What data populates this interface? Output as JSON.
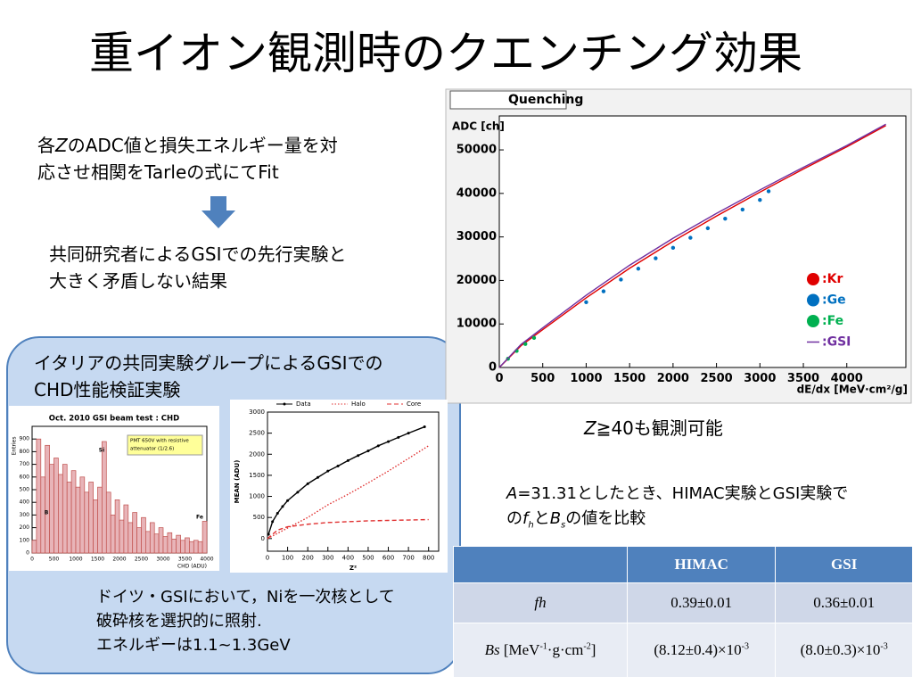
{
  "title": "重イオン観測時のクエンチング効果",
  "intro": {
    "line1": [
      "各",
      "Z",
      "のADC値と損失エネルギー量を対"
    ],
    "line2": "応させ相関をTarleの式にてFit"
  },
  "result": [
    "共同研究者によるGSIでの先行実験と",
    "大きく矛盾しない結果"
  ],
  "box": {
    "heading": [
      "イタリアの共同実験グループによるGSIでの",
      "CHD性能検証実験"
    ],
    "notes": [
      "ドイツ・GSIにおいて，Niを一次核として",
      "破砕核を選択的に照射.",
      "エネルギーは1.1~1.3GeV"
    ]
  },
  "z_note": [
    "Z",
    "≧40も観測可能"
  ],
  "compare": {
    "line1": [
      "A",
      "=31.31としたとき、HIMAC実験とGSI実験で"
    ],
    "line2": [
      "の",
      "f",
      "h",
      "と",
      "B",
      "s",
      "の値を比較"
    ]
  },
  "table": {
    "header": [
      "HIMAC",
      "GSI"
    ],
    "rows": [
      {
        "label": [
          "fh"
        ],
        "values": [
          [
            "0.39±0.01"
          ],
          [
            "0.36±0.01"
          ]
        ]
      },
      {
        "label": [
          "Bs",
          " [MeV",
          "-1",
          "·g·cm",
          "-2",
          "]"
        ],
        "values": [
          [
            "(8.12±0.4)×10",
            "-3"
          ],
          [
            "(8.0±0.3)×10",
            "-3"
          ]
        ]
      }
    ]
  },
  "chart_data": [
    {
      "type": "line",
      "title": "Quenching",
      "y_label": "ADC [ch]",
      "x_label": "dE/dx [MeV·cm²/g]",
      "xlim": [
        0,
        4680
      ],
      "ylim": [
        0,
        57800
      ],
      "xticks": [
        0,
        500,
        1000,
        1500,
        2000,
        2500,
        3000,
        3500,
        4000
      ],
      "yticks": [
        0,
        10000,
        20000,
        30000,
        40000,
        50000
      ],
      "series": [
        {
          "name": ":Kr",
          "color": "#e00000",
          "mode": "line",
          "legend_marker": "dot",
          "x": [
            0,
            250,
            500,
            1000,
            1500,
            2000,
            2500,
            3000,
            3500,
            4000,
            4450
          ],
          "values": [
            0,
            5000,
            8700,
            16000,
            22800,
            29000,
            34800,
            40300,
            45600,
            50700,
            55600
          ]
        },
        {
          "name": ":Ge",
          "color": "#0070c0",
          "mode": "points",
          "legend_marker": "dot",
          "x": [
            1000,
            1200,
            1400,
            1600,
            1800,
            2000,
            2200,
            2400,
            2600,
            2800,
            3000,
            3100
          ],
          "values": [
            15000,
            17500,
            20200,
            22700,
            25100,
            27500,
            29800,
            32000,
            34200,
            36300,
            38500,
            40500
          ]
        },
        {
          "name": ":Fe",
          "color": "#00b050",
          "mode": "points",
          "legend_marker": "dot",
          "x": [
            100,
            200,
            300,
            400
          ],
          "values": [
            2000,
            3800,
            5400,
            6800
          ]
        },
        {
          "name": ":GSI",
          "color": "#7030a0",
          "mode": "line",
          "legend_marker": "dash",
          "x": [
            0,
            250,
            500,
            1000,
            1500,
            2000,
            2500,
            3000,
            3500,
            4000,
            4450
          ],
          "values": [
            0,
            5300,
            9100,
            16600,
            23500,
            29700,
            35400,
            40800,
            46000,
            51000,
            55900
          ]
        }
      ]
    },
    {
      "type": "histogram",
      "title": "Oct. 2010 GSI beam test : CHD",
      "note": [
        "PMT 650V  with resistive",
        "attenuator (1/2.6)"
      ],
      "peak_labels": [
        "B",
        "Si",
        "Fe"
      ],
      "x_label": "CHD (ADU)",
      "y_label": "Entries",
      "color": "#e8b4b8",
      "edge_color": "#c0504d",
      "xlim": [
        0,
        4000
      ],
      "ylim": [
        0,
        1000
      ],
      "xticks": [
        0,
        500,
        1000,
        1500,
        2000,
        2500,
        3000,
        3500,
        4000
      ],
      "yticks": [
        0,
        100,
        200,
        300,
        400,
        500,
        600,
        700,
        800,
        900
      ],
      "bins": [
        0,
        100,
        200,
        300,
        400,
        500,
        600,
        700,
        800,
        900,
        1000,
        1100,
        1200,
        1300,
        1400,
        1500,
        1600,
        1700,
        1800,
        1900,
        2000,
        2100,
        2200,
        2300,
        2400,
        2500,
        2600,
        2700,
        2800,
        2900,
        3000,
        3100,
        3200,
        3300,
        3400,
        3500,
        3600,
        3700,
        3800,
        3900,
        4000
      ],
      "values": [
        100,
        900,
        600,
        850,
        700,
        750,
        620,
        700,
        560,
        650,
        520,
        600,
        480,
        560,
        420,
        520,
        880,
        480,
        300,
        420,
        260,
        380,
        240,
        320,
        200,
        280,
        170,
        240,
        150,
        200,
        130,
        160,
        110,
        140,
        100,
        120,
        90,
        100,
        90,
        250
      ]
    },
    {
      "type": "line",
      "x_label": "Z²",
      "y_label": "MEAN (ADU)",
      "xlim": [
        0,
        850
      ],
      "ylim": [
        -300,
        3000
      ],
      "xticks": [
        0,
        100,
        200,
        300,
        400,
        500,
        600,
        700,
        800
      ],
      "yticks": [
        0,
        500,
        1000,
        1500,
        2000,
        2500,
        3000
      ],
      "series": [
        {
          "name": "Data",
          "color": "#000000",
          "mode": "line-points",
          "dash": "solid",
          "x": [
            5,
            25,
            50,
            75,
            100,
            150,
            200,
            250,
            300,
            350,
            400,
            450,
            500,
            550,
            600,
            650,
            700,
            780
          ],
          "values": [
            100,
            400,
            600,
            760,
            900,
            1100,
            1300,
            1450,
            1600,
            1720,
            1850,
            1970,
            2080,
            2200,
            2300,
            2400,
            2500,
            2650
          ]
        },
        {
          "name": "Halo",
          "color": "#e03030",
          "mode": "line",
          "dash": "dotted",
          "x": [
            0,
            100,
            200,
            300,
            400,
            500,
            600,
            700,
            800
          ],
          "values": [
            0,
            250,
            500,
            800,
            1050,
            1320,
            1600,
            1900,
            2200
          ]
        },
        {
          "name": "Core",
          "color": "#e03030",
          "mode": "line",
          "dash": "dashed",
          "x": [
            0,
            50,
            100,
            200,
            300,
            400,
            500,
            600,
            700,
            800
          ],
          "values": [
            0,
            200,
            280,
            340,
            380,
            400,
            420,
            430,
            440,
            450
          ]
        }
      ]
    }
  ]
}
